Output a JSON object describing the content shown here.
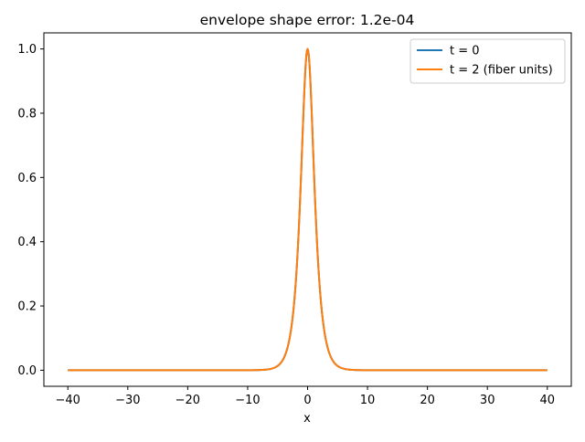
{
  "chart_data": {
    "type": "line",
    "title": "envelope shape error: 1.2e-04",
    "xlabel": "x",
    "ylabel": "",
    "xlim": [
      -44,
      44
    ],
    "ylim": [
      -0.05,
      1.05
    ],
    "xticks": [
      -40,
      -30,
      -20,
      -10,
      0,
      10,
      20,
      30,
      40
    ],
    "xtick_labels": [
      "−40",
      "−30",
      "−20",
      "−10",
      "0",
      "10",
      "20",
      "30",
      "40"
    ],
    "yticks": [
      0.0,
      0.2,
      0.4,
      0.6,
      0.8,
      1.0
    ],
    "ytick_labels": [
      "0.0",
      "0.2",
      "0.4",
      "0.6",
      "0.8",
      "1.0"
    ],
    "grid": false,
    "legend_position": "upper right",
    "x_range": [
      -40,
      40
    ],
    "series": [
      {
        "name": "t = 0",
        "color": "#1f77b4",
        "x": [
          -40,
          -10,
          -8,
          -6,
          -5,
          -4,
          -3,
          -2.5,
          -2,
          -1.5,
          -1,
          -0.5,
          0,
          0.5,
          1,
          1.5,
          2,
          2.5,
          3,
          4,
          5,
          6,
          8,
          10,
          40
        ],
        "y": [
          0.0,
          0.0001,
          0.0007,
          0.005,
          0.013,
          0.037,
          0.099,
          0.163,
          0.266,
          0.425,
          0.648,
          0.887,
          1.0,
          0.887,
          0.648,
          0.425,
          0.266,
          0.163,
          0.099,
          0.037,
          0.013,
          0.005,
          0.0007,
          0.0001,
          0.0
        ]
      },
      {
        "name": "t = 2 (fiber units)",
        "color": "#ff7f0e",
        "x": [
          -40,
          -10,
          -8,
          -6,
          -5,
          -4,
          -3,
          -2.5,
          -2,
          -1.5,
          -1,
          -0.5,
          0,
          0.5,
          1,
          1.5,
          2,
          2.5,
          3,
          4,
          5,
          6,
          8,
          10,
          40
        ],
        "y": [
          0.0,
          0.0001,
          0.0007,
          0.005,
          0.013,
          0.037,
          0.099,
          0.163,
          0.266,
          0.425,
          0.648,
          0.887,
          1.0,
          0.887,
          0.648,
          0.425,
          0.266,
          0.163,
          0.099,
          0.037,
          0.013,
          0.005,
          0.0007,
          0.0001,
          0.0
        ]
      }
    ]
  }
}
